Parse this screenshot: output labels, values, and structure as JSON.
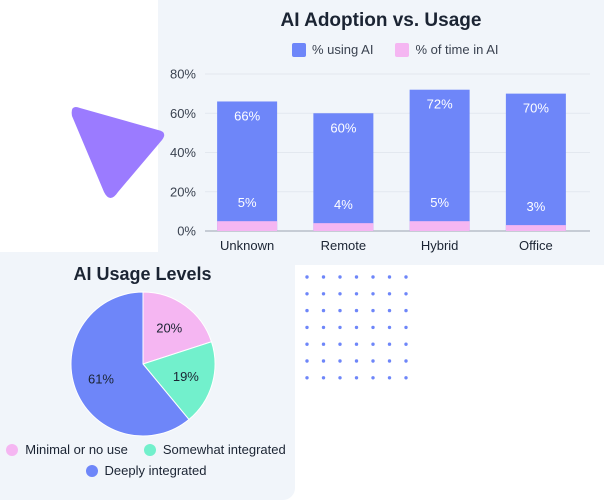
{
  "colors": {
    "card_bg": "#f1f5fa",
    "bar_primary": "#6e86f9",
    "bar_secondary": "#f5b6f2",
    "pie_minimal": "#f5b6f2",
    "pie_somewhat": "#72f0cc",
    "pie_deeply": "#6e86f9",
    "accent_triangle": "#9b7bff",
    "dot_grid": "#6e86f9"
  },
  "chart_data": [
    {
      "type": "bar",
      "title": "AI Adoption vs. Usage",
      "categories": [
        "Unknown",
        "Remote",
        "Hybrid",
        "Office"
      ],
      "series": [
        {
          "name": "% using AI",
          "values": [
            66,
            60,
            72,
            70
          ],
          "labels": [
            "66%",
            "60%",
            "72%",
            "70%"
          ]
        },
        {
          "name": "% of time in AI",
          "values": [
            5,
            4,
            5,
            3
          ],
          "labels": [
            "5%",
            "4%",
            "5%",
            "3%"
          ]
        }
      ],
      "ytick_labels": [
        "0%",
        "20%",
        "40%",
        "60%",
        "80%"
      ],
      "yticks": [
        0,
        20,
        40,
        60,
        80
      ],
      "ylim": [
        0,
        80
      ],
      "xlabel": "",
      "ylabel": "",
      "grid": true,
      "legend": "top"
    },
    {
      "type": "pie",
      "title": "AI Usage Levels",
      "categories": [
        "Minimal or no use",
        "Somewhat integrated",
        "Deeply integrated"
      ],
      "values": [
        20,
        19,
        61
      ],
      "labels": [
        "20%",
        "19%",
        "61%"
      ],
      "legend": "bottom"
    }
  ],
  "icons": {
    "triangle": "play-triangle-icon",
    "dots": "dot-grid-icon"
  }
}
